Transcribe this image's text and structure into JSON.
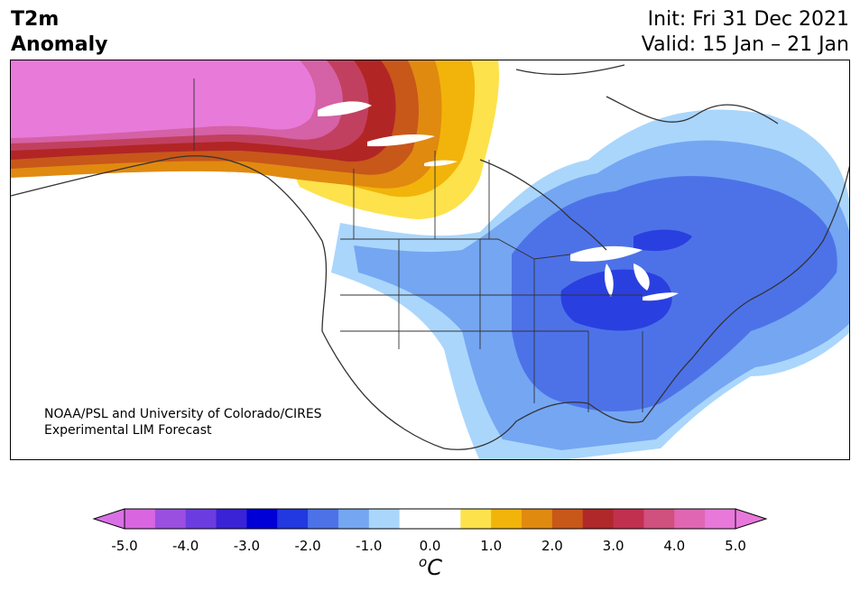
{
  "title": {
    "line1": "T2m",
    "line2": "Anomaly"
  },
  "init": {
    "line1": "Init: Fri 31 Dec 2021",
    "line2": "Valid: 15 Jan – 21 Jan"
  },
  "credit": {
    "line1": "NOAA/PSL and University of Colorado/CIRES",
    "line2": "Experimental LIM Forecast"
  },
  "colorbar": {
    "unit_base": "C",
    "unit_sup": "o",
    "ticks": [
      "-5.0",
      "-4.0",
      "-3.0",
      "-2.0",
      "-1.0",
      "0.0",
      "1.0",
      "2.0",
      "3.0",
      "4.0",
      "5.0"
    ],
    "colors": [
      "#d966e0",
      "#9b4fe0",
      "#6b3de0",
      "#3a22d6",
      "#0000d6",
      "#2238e0",
      "#4d72e8",
      "#74a6f2",
      "#aad6fc",
      "#ffffff",
      "#ffffff",
      "#fde24c",
      "#f2b40a",
      "#e08a10",
      "#c8571a",
      "#b0282a",
      "#c23050",
      "#d0507e",
      "#e066b4",
      "#e878da"
    ],
    "under_color": "#da70e6",
    "over_color": "#e878da"
  },
  "colors": {
    "pink": "#e87ada",
    "magenta": "#d561a6",
    "rose": "#c2405f",
    "darkred": "#b22525",
    "rust": "#c8571a",
    "orange": "#e08a10",
    "gold": "#f2b40a",
    "yellow": "#fde24c",
    "lightblue": "#aad6fc",
    "midblue": "#74a6f2",
    "blue": "#4d72e8",
    "royal": "#2a3fe0",
    "coast": "#333333"
  }
}
